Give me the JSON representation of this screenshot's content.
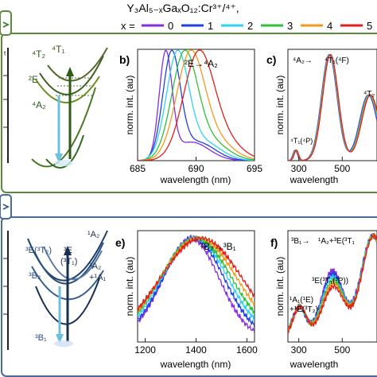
{
  "header": {
    "formula": "Y₃Al₅₋ₓGaₓO₁₂:Cr³⁺/⁴⁺,",
    "x_prefix": "x =",
    "legend": [
      {
        "label": "0",
        "color": "#8a2be2"
      },
      {
        "label": "1",
        "color": "#2040e0"
      },
      {
        "label": "2",
        "color": "#2ed3f0"
      },
      {
        "label": "3",
        "color": "#2fbf3a"
      },
      {
        "label": "4",
        "color": "#f29a1c"
      },
      {
        "label": "5",
        "color": "#e0201a"
      }
    ]
  },
  "top_row": {
    "diagram_labels": [
      "⁴T₂",
      "⁴T₁",
      "²E",
      "⁴A₂"
    ],
    "axis_fragment": "ᵗ",
    "panel_b": {
      "letter": "b)",
      "annotation": "²E→⁴A₂",
      "ylabel": "norm. int. (au)",
      "xlabel": "wavelength (nm)",
      "ticks": [
        "685",
        "690",
        "695"
      ]
    },
    "panel_c": {
      "letter": "c)",
      "ann_left": "⁴A₂→",
      "ann_mid": "⁴T₁(⁴F)",
      "ann_right": "⁴T₂",
      "ann_low": "⁴T₁(⁴P)",
      "ylabel": "norm. int. (au)",
      "xlabel": "wavelength",
      "ticks": [
        "300",
        "500"
      ]
    }
  },
  "bottom_row": {
    "diagram_labels": [
      "³E(³T₂)",
      "³E",
      "(³T₁)",
      "¹A₂",
      "³B₂",
      "³A₂",
      "+¹A₁",
      "³B₁"
    ],
    "panel_e": {
      "letter": "e)",
      "annotation": "³B₂→³B₁",
      "ylabel": "norm. int. (au)",
      "xlabel": "wavelength (nm)",
      "ticks": [
        "1200",
        "1400",
        "1600"
      ]
    },
    "panel_f": {
      "letter": "f)",
      "ann_top": "³B₁→",
      "ann_top2": "¹A₂+³E(³T₁",
      "ann_mid": "³E(³T₁(³P))",
      "ann_low1": "¹A₁(¹E)",
      "ann_low2": "+¹E(³T₂)",
      "ylabel": "norm. int. (au)",
      "xlabel": "wavelength",
      "ticks": [
        "300",
        "500"
      ]
    }
  },
  "chart_data": [
    {
      "panel": "b",
      "type": "line",
      "xlabel": "wavelength (nm)",
      "ylabel": "norm. int. (au)",
      "xlim": [
        685,
        695
      ],
      "ylim": [
        0,
        1.05
      ],
      "series": [
        {
          "name": "0",
          "peak": 687.4,
          "width": 0.55
        },
        {
          "name": "1",
          "peak": 687.9,
          "width": 0.75
        },
        {
          "name": "2",
          "peak": 688.4,
          "width": 0.95
        },
        {
          "name": "3",
          "peak": 689.0,
          "width": 1.1
        },
        {
          "name": "4",
          "peak": 689.5,
          "width": 1.2
        },
        {
          "name": "5",
          "peak": 690.2,
          "width": 1.3
        }
      ]
    },
    {
      "panel": "c",
      "type": "line",
      "xlabel": "wavelength",
      "ylabel": "norm. int. (au)",
      "xlim": [
        250,
        660
      ],
      "ylim": [
        0,
        1.05
      ],
      "bands": [
        {
          "center": 283,
          "width": 10,
          "height": 0.1
        },
        {
          "center": 440,
          "width": 36,
          "height": 1.0
        },
        {
          "center": 620,
          "width": 40,
          "height": 0.62
        }
      ]
    },
    {
      "panel": "e",
      "type": "line",
      "xlabel": "wavelength (nm)",
      "ylabel": "norm. int. (au)",
      "xlim": [
        1170,
        1630
      ],
      "ylim": [
        0,
        1.05
      ],
      "series": [
        {
          "name": "0",
          "peak": 1380,
          "width": 110
        },
        {
          "name": "1",
          "peak": 1390,
          "width": 120
        },
        {
          "name": "2",
          "peak": 1395,
          "width": 130
        },
        {
          "name": "3",
          "peak": 1400,
          "width": 140
        },
        {
          "name": "4",
          "peak": 1410,
          "width": 150
        },
        {
          "name": "5",
          "peak": 1420,
          "width": 160
        }
      ]
    },
    {
      "panel": "f",
      "type": "line",
      "xlabel": "wavelength",
      "ylabel": "norm. int. (au)",
      "xlim": [
        250,
        660
      ],
      "ylim": [
        0,
        1.05
      ],
      "bands": [
        {
          "center": 300,
          "width": 30,
          "height": 0.28
        },
        {
          "center": 455,
          "width": 50,
          "height": 0.62
        },
        {
          "center": 640,
          "width": 55,
          "height": 0.95
        }
      ]
    }
  ]
}
